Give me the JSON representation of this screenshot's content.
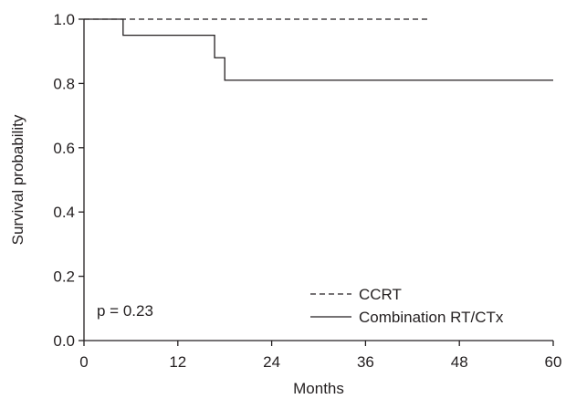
{
  "chart_data": {
    "type": "line",
    "step": true,
    "xlabel": "Months",
    "ylabel": "Survival probability",
    "xlim": [
      0,
      60
    ],
    "ylim": [
      0.0,
      1.0
    ],
    "xticks": [
      0,
      12,
      24,
      36,
      48,
      60
    ],
    "yticks": [
      0.0,
      0.2,
      0.4,
      0.6,
      0.8,
      1.0
    ],
    "xtick_labels": [
      "0",
      "12",
      "24",
      "36",
      "48",
      "60"
    ],
    "ytick_labels": [
      "0.0",
      "0.2",
      "0.4",
      "0.6",
      "0.8",
      "1.0"
    ],
    "grid": false,
    "legend_position": "bottom-right",
    "annotation": "p = 0.23",
    "series": [
      {
        "name": "CCRT",
        "style": "dashed",
        "color": "#231f20",
        "x": [
          0,
          44
        ],
        "y": [
          1.0,
          1.0
        ]
      },
      {
        "name": "Combination RT/CTx",
        "style": "solid",
        "color": "#231f20",
        "x": [
          0,
          5,
          16.7,
          18,
          60
        ],
        "y": [
          1.0,
          0.95,
          0.88,
          0.81,
          0.81
        ]
      }
    ]
  }
}
